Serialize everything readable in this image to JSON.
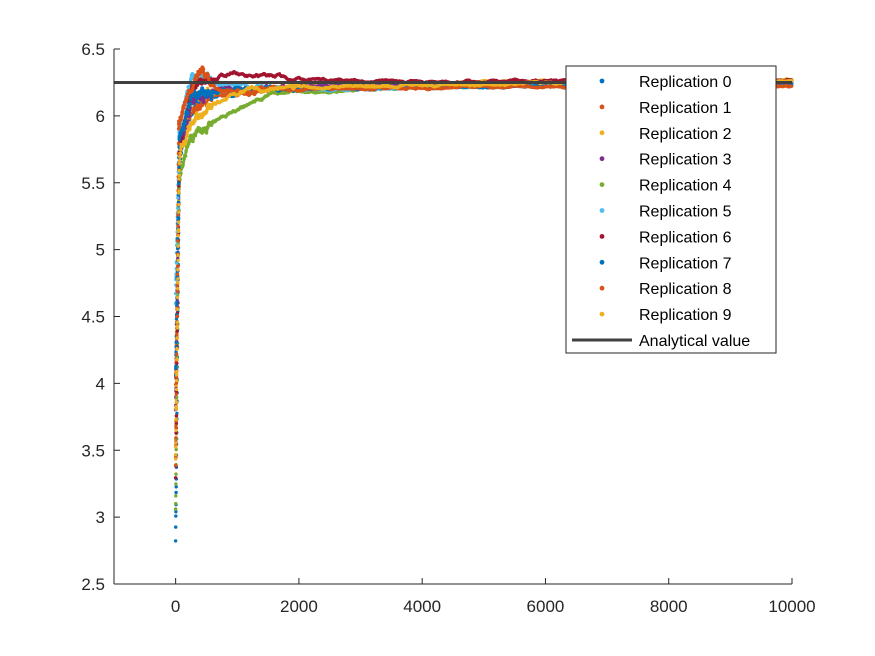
{
  "chart_data": {
    "type": "scatter",
    "title": "",
    "xlabel": "",
    "ylabel": "",
    "xlim": [
      -1000,
      10000
    ],
    "ylim": [
      2.5,
      6.5
    ],
    "x_ticks": [
      0,
      2000,
      4000,
      6000,
      8000,
      10000
    ],
    "x_tick_labels": [
      "0",
      "2000",
      "4000",
      "6000",
      "8000",
      "10000"
    ],
    "y_ticks": [
      2.5,
      3,
      3.5,
      4,
      4.5,
      5,
      5.5,
      6,
      6.5
    ],
    "y_tick_labels": [
      "2.5",
      "3",
      "3.5",
      "4",
      "4.5",
      "5",
      "5.5",
      "6",
      "6.5"
    ],
    "grid": false,
    "legend_position": "top-right",
    "reference_line": {
      "name": "Analytical value",
      "y": 6.25,
      "color": "#404040"
    },
    "series": [
      {
        "name": "Replication 0",
        "color": "#0072BD",
        "start": 2.86,
        "anchors": [
          [
            0,
            2.86
          ],
          [
            60,
            5.6
          ],
          [
            150,
            5.95
          ],
          [
            400,
            6.12
          ],
          [
            1500,
            6.2
          ],
          [
            4000,
            6.23
          ],
          [
            6000,
            6.24
          ],
          [
            10000,
            6.25
          ]
        ]
      },
      {
        "name": "Replication 1",
        "color": "#D95319",
        "start": 4.02,
        "anchors": [
          [
            0,
            4.02
          ],
          [
            60,
            5.7
          ],
          [
            200,
            6.0
          ],
          [
            600,
            6.15
          ],
          [
            2000,
            6.2
          ],
          [
            5000,
            6.22
          ],
          [
            10000,
            6.23
          ]
        ]
      },
      {
        "name": "Replication 2",
        "color": "#EDB120",
        "start": 3.55,
        "anchors": [
          [
            0,
            3.55
          ],
          [
            60,
            5.8
          ],
          [
            300,
            6.15
          ],
          [
            800,
            6.2
          ],
          [
            2000,
            6.22
          ],
          [
            6000,
            6.26
          ],
          [
            10000,
            6.27
          ]
        ]
      },
      {
        "name": "Replication 3",
        "color": "#7E2F8E",
        "start": 3.82,
        "anchors": [
          [
            0,
            3.82
          ],
          [
            60,
            5.7
          ],
          [
            250,
            6.1
          ],
          [
            700,
            6.2
          ],
          [
            2500,
            6.22
          ],
          [
            6000,
            6.24
          ],
          [
            10000,
            6.25
          ]
        ]
      },
      {
        "name": "Replication 4",
        "color": "#77AC30",
        "start": 3.07,
        "anchors": [
          [
            0,
            3.07
          ],
          [
            50,
            5.5
          ],
          [
            200,
            5.8
          ],
          [
            500,
            5.92
          ],
          [
            800,
            6.0
          ],
          [
            1500,
            6.15
          ],
          [
            3000,
            6.2
          ],
          [
            6000,
            6.24
          ],
          [
            10000,
            6.25
          ]
        ]
      },
      {
        "name": "Replication 5",
        "color": "#4DBEEE",
        "start": 4.6,
        "anchors": [
          [
            0,
            4.6
          ],
          [
            60,
            5.9
          ],
          [
            250,
            6.3
          ],
          [
            700,
            6.25
          ],
          [
            2000,
            6.2
          ],
          [
            5000,
            6.22
          ],
          [
            10000,
            6.24
          ]
        ]
      },
      {
        "name": "Replication 6",
        "color": "#A2142F",
        "start": 3.29,
        "anchors": [
          [
            0,
            3.29
          ],
          [
            60,
            5.8
          ],
          [
            250,
            6.2
          ],
          [
            500,
            6.3
          ],
          [
            1000,
            6.32
          ],
          [
            2000,
            6.28
          ],
          [
            4000,
            6.25
          ],
          [
            6000,
            6.26
          ],
          [
            10000,
            6.27
          ]
        ]
      },
      {
        "name": "Replication 7",
        "color": "#0072BD",
        "start": 4.05,
        "anchors": [
          [
            0,
            4.05
          ],
          [
            60,
            5.8
          ],
          [
            250,
            6.15
          ],
          [
            800,
            6.2
          ],
          [
            2000,
            6.2
          ],
          [
            5000,
            6.22
          ],
          [
            10000,
            6.24
          ]
        ]
      },
      {
        "name": "Replication 8",
        "color": "#D95319",
        "start": 3.37,
        "anchors": [
          [
            0,
            3.37
          ],
          [
            50,
            5.9
          ],
          [
            200,
            6.15
          ],
          [
            400,
            6.35
          ],
          [
            700,
            6.2
          ],
          [
            2000,
            6.2
          ],
          [
            6000,
            6.22
          ],
          [
            10000,
            6.22
          ]
        ]
      },
      {
        "name": "Replication 9",
        "color": "#EDB120",
        "start": 3.41,
        "anchors": [
          [
            0,
            3.41
          ],
          [
            60,
            5.7
          ],
          [
            200,
            5.9
          ],
          [
            600,
            6.1
          ],
          [
            1200,
            6.2
          ],
          [
            3000,
            6.22
          ],
          [
            6000,
            6.24
          ],
          [
            10000,
            6.26
          ]
        ]
      }
    ]
  }
}
